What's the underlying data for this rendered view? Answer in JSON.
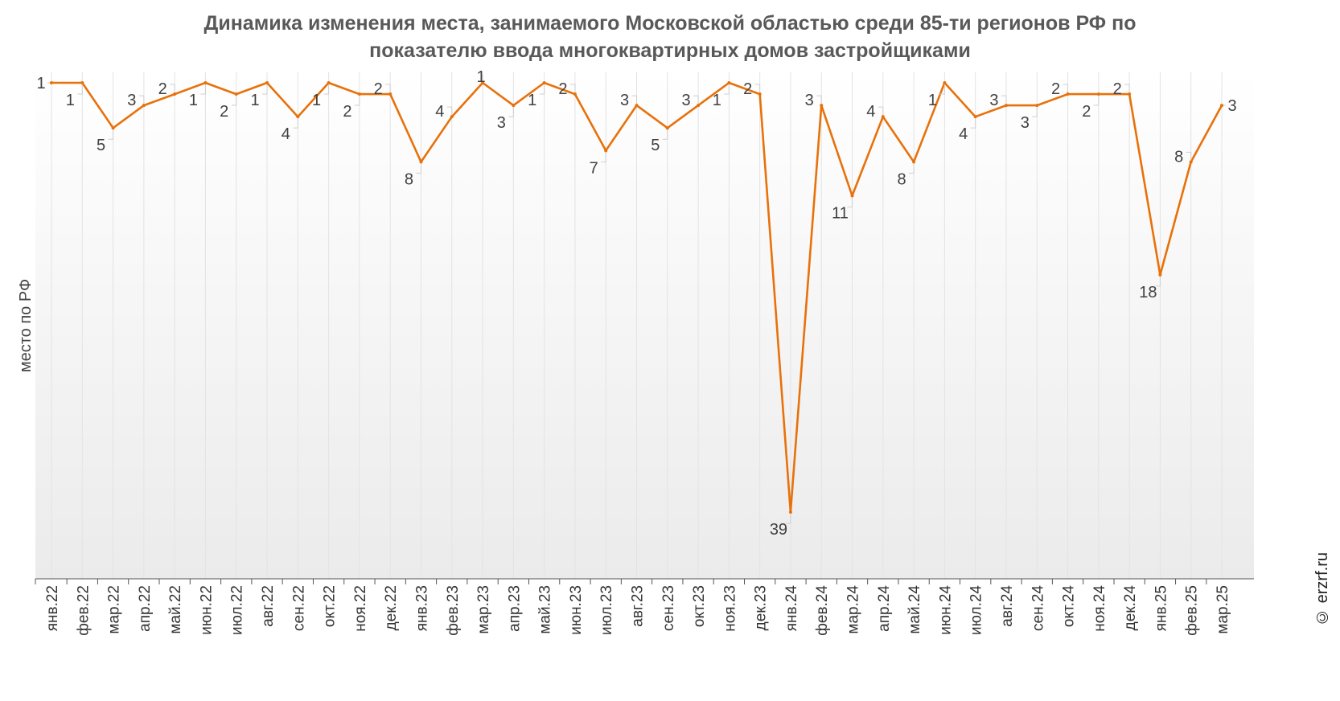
{
  "watermark": "© erzrf.ru",
  "chart_data": {
    "type": "line",
    "title_line1": "Динамика изменения места, занимаемого Московской областью среди 85-ти регионов РФ по",
    "title_line2": "показателю ввода многоквартирных домов застройщиками",
    "xlabel": "",
    "ylabel": "место по РФ",
    "y_reversed": true,
    "ylim": [
      1,
      45
    ],
    "grid": "vertical",
    "line_color": "#E8710A",
    "categories": [
      "янв.22",
      "фев.22",
      "мар.22",
      "апр.22",
      "май.22",
      "июн.22",
      "июл.22",
      "авг.22",
      "сен.22",
      "окт.22",
      "ноя.22",
      "дек.22",
      "янв.23",
      "фев.23",
      "мар.23",
      "апр.23",
      "май.23",
      "июн.23",
      "июл.23",
      "авг.23",
      "сен.23",
      "окт.23",
      "ноя.23",
      "дек.23",
      "янв.24",
      "фев.24",
      "мар.24",
      "апр.24",
      "май.24",
      "июн.24",
      "июл.24",
      "авг.24",
      "сен.24",
      "окт.24",
      "ноя.24",
      "дек.24",
      "янв.25",
      "фев.25",
      "мар.25"
    ],
    "series": [
      {
        "values": [
          1,
          1,
          5,
          3,
          2,
          1,
          2,
          1,
          4,
          1,
          2,
          2,
          8,
          4,
          1,
          3,
          1,
          2,
          7,
          3,
          5,
          3,
          1,
          2,
          39,
          3,
          11,
          4,
          8,
          1,
          4,
          3,
          3,
          2,
          2,
          2,
          18,
          8,
          3
        ]
      }
    ]
  }
}
